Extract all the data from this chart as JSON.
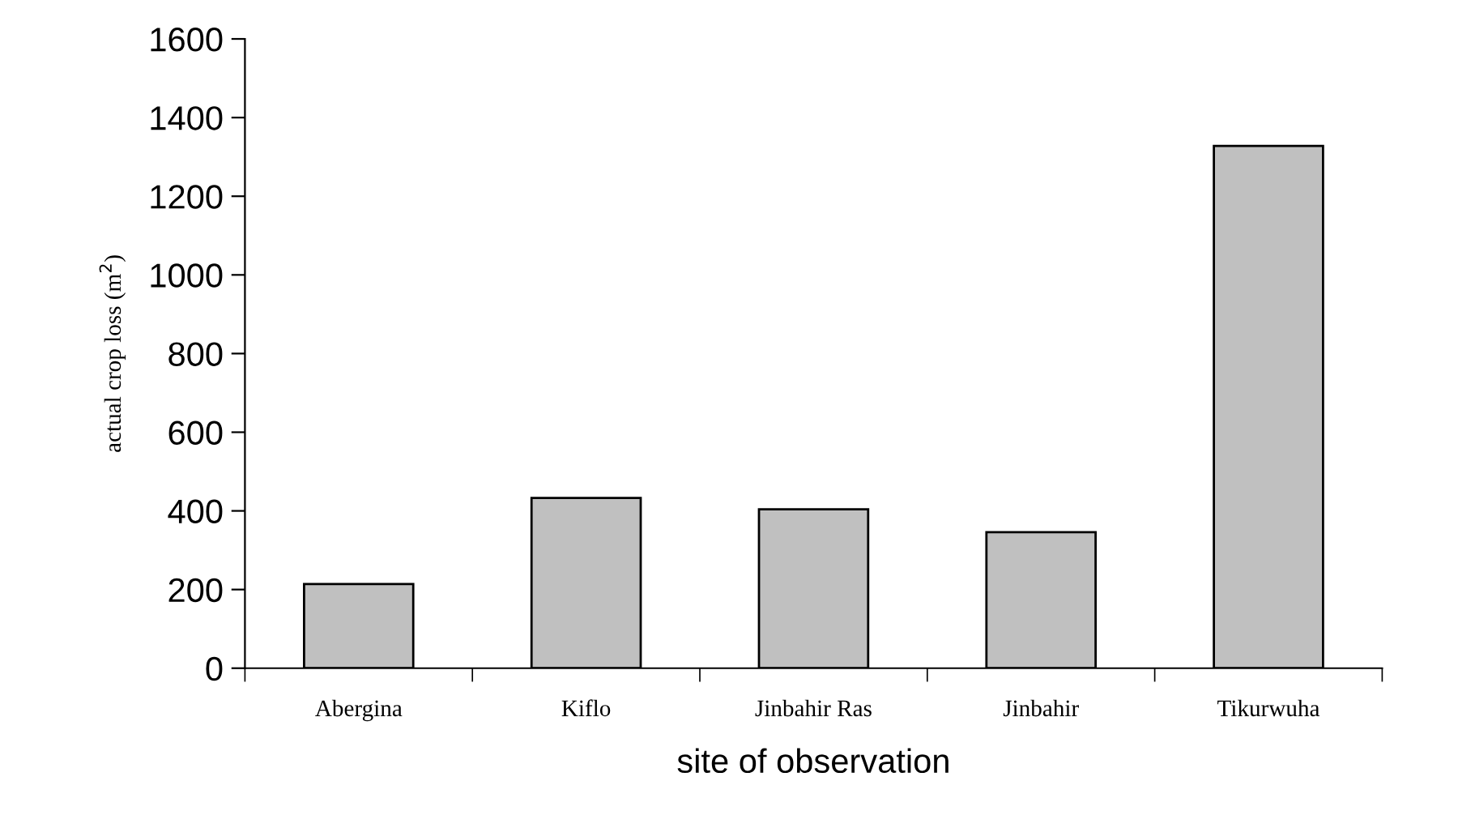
{
  "chart_data": {
    "type": "bar",
    "categories": [
      "Abergina",
      "Kiflo",
      "Jinbahir Ras",
      "Jinbahir",
      "Tikurwuha"
    ],
    "values": [
      214,
      433,
      404,
      346,
      1328
    ],
    "color": "#c0c0c0",
    "xlabel": "site of observation",
    "ylabel": "actual crop loss (m$^{2}$)",
    "ylim": [
      0,
      1600
    ],
    "yticks": [
      0,
      200,
      400,
      600,
      800,
      1000,
      1200,
      1400,
      1600
    ],
    "grid": false
  }
}
